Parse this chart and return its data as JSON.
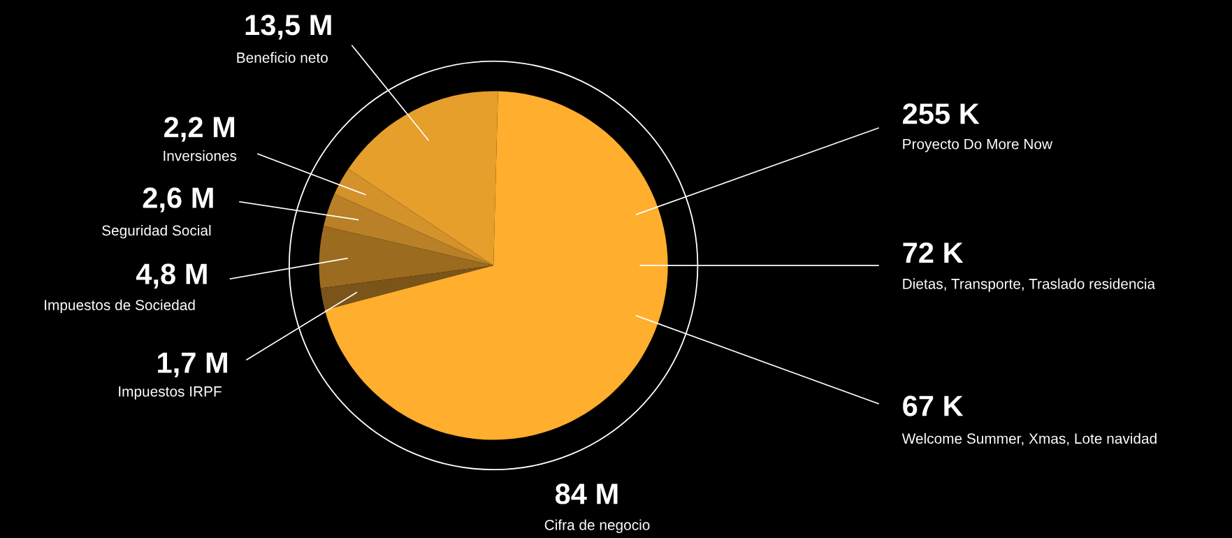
{
  "chart_data": {
    "type": "pie",
    "categories": [
      "Beneficio neto",
      "Inversiones",
      "Seguridad Social",
      "Impuestos de Sociedad",
      "Impuestos IRPF",
      null
    ],
    "values": [
      13.5,
      2.2,
      2.6,
      4.8,
      1.7,
      59.2
    ],
    "value_labels": [
      "13,5 M",
      "2,2 M",
      "2,6 M",
      "4,8 M",
      "1,7 M",
      null
    ],
    "colors": [
      "#e59f2a",
      "#d3922a",
      "#b98027",
      "#9b6b1f",
      "#7a5418",
      "#ffae2d"
    ],
    "annotations": [
      "255 K\nProyecto Do More Now",
      "72 K\nDietas, Transporte, Traslado residencia",
      "67 K\nWelcome Summer, Xmas, Lote navidad",
      "84 M\nCifra de negocio"
    ],
    "legend": false
  }
}
